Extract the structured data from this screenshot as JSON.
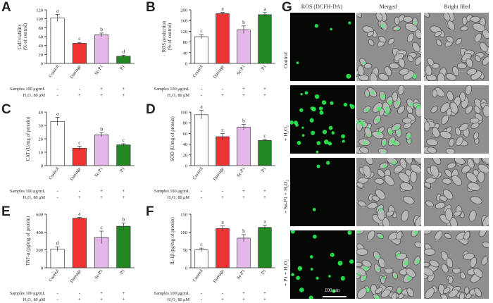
{
  "charts": [
    {
      "letter": "A",
      "chart_data": {
        "type": "bar",
        "categories": [
          "Control",
          "Damage",
          "Se-P1",
          "P1"
        ],
        "values": [
          102,
          45,
          64,
          16
        ],
        "errors": [
          8,
          2,
          4,
          2
        ],
        "letters": [
          "a",
          "c",
          "b",
          "d"
        ],
        "colors": [
          "#ffffff",
          "#ee3333",
          "#e6b8ea",
          "#228822"
        ],
        "ylabel_lines": [
          "Cell viability",
          "(% of control)"
        ],
        "ylim": [
          0,
          120
        ],
        "yticks": [
          0,
          20,
          40,
          60,
          80,
          100,
          120
        ],
        "treatment_rows": [
          {
            "label": "Samples 100 μg/mL",
            "marks": [
              "-",
              "-",
              "+",
              "+"
            ]
          },
          {
            "label": "H₂O₂ 80 μM",
            "marks": [
              "-",
              "+",
              "+",
              "+"
            ]
          }
        ]
      }
    },
    {
      "letter": "B",
      "chart_data": {
        "type": "bar",
        "categories": [
          "Control",
          "Damage",
          "Se-P1",
          "P1"
        ],
        "values": [
          100,
          186,
          126,
          182
        ],
        "errors": [
          8,
          5,
          14,
          8
        ],
        "letters": [
          "c",
          "a",
          "b",
          "a"
        ],
        "colors": [
          "#ffffff",
          "#ee3333",
          "#e6b8ea",
          "#228822"
        ],
        "ylabel_lines": [
          "ROS production",
          "(% of control)"
        ],
        "ylim": [
          0,
          200
        ],
        "yticks": [
          0,
          40,
          80,
          120,
          160,
          200
        ],
        "treatment_rows": [
          {
            "label": "Samples 100 μg/mL",
            "marks": [
              "-",
              "-",
              "+",
              "+"
            ]
          },
          {
            "label": "H₂O₂ 80 μM",
            "marks": [
              "-",
              "+",
              "+",
              "+"
            ]
          }
        ]
      }
    },
    {
      "letter": "C",
      "chart_data": {
        "type": "bar",
        "categories": [
          "Control",
          "Damage",
          "Se-P1",
          "P1"
        ],
        "values": [
          33,
          13,
          23,
          15.5
        ],
        "errors": [
          3,
          1.5,
          1.5,
          0.8
        ],
        "letters": [
          "a",
          "c",
          "b",
          "c"
        ],
        "colors": [
          "#ffffff",
          "#ee3333",
          "#e6b8ea",
          "#228822"
        ],
        "ylabel_lines": [
          "CAT (U/mg of protein)"
        ],
        "ylim": [
          0,
          40
        ],
        "yticks": [
          0,
          10,
          20,
          30,
          40
        ],
        "treatment_rows": [
          {
            "label": "Samples 100 μg/mL",
            "marks": [
              "-",
              "-",
              "+",
              "+"
            ]
          },
          {
            "label": "H₂O₂ 80 μM",
            "marks": [
              "-",
              "+",
              "+",
              "+"
            ]
          }
        ]
      }
    },
    {
      "letter": "D",
      "chart_data": {
        "type": "bar",
        "categories": [
          "Control",
          "Damage",
          "Se-P1",
          "P1"
        ],
        "values": [
          95,
          54,
          72,
          47
        ],
        "errors": [
          8,
          6,
          5,
          2
        ],
        "letters": [
          "a",
          "c",
          "b",
          "c"
        ],
        "colors": [
          "#ffffff",
          "#ee3333",
          "#e6b8ea",
          "#228822"
        ],
        "ylabel_lines": [
          "SOD (U/mg of protein)"
        ],
        "ylim": [
          0,
          100
        ],
        "yticks": [
          0,
          20,
          40,
          60,
          80,
          100
        ],
        "treatment_rows": [
          {
            "label": "Samples 100 μg/mL",
            "marks": [
              "-",
              "-",
              "+",
              "+"
            ]
          },
          {
            "label": "H₂O₂ 80 μM",
            "marks": [
              "-",
              "+",
              "+",
              "+"
            ]
          }
        ]
      }
    },
    {
      "letter": "E",
      "chart_data": {
        "type": "bar",
        "categories": [
          "Control",
          "Damage",
          "Se-P1",
          "P1"
        ],
        "values": [
          210,
          555,
          340,
          465
        ],
        "errors": [
          25,
          10,
          70,
          35
        ],
        "letters": [
          "d",
          "a",
          "c",
          "b"
        ],
        "colors": [
          "#ffffff",
          "#ee3333",
          "#e6b8ea",
          "#228822"
        ],
        "ylabel_lines": [
          "TNF-α (pg/mg of protein)"
        ],
        "ylim": [
          0,
          600
        ],
        "yticks": [
          0,
          200,
          400,
          600
        ],
        "treatment_rows": [
          {
            "label": "Samples 100 μg/mL",
            "marks": [
              "-",
              "-",
              "+",
              "+"
            ]
          },
          {
            "label": "H₂O₂ 80 μM",
            "marks": [
              "-",
              "+",
              "+",
              "+"
            ]
          }
        ]
      }
    },
    {
      "letter": "F",
      "chart_data": {
        "type": "bar",
        "categories": [
          "Control",
          "Damage",
          "Se-P1",
          "P1"
        ],
        "values": [
          50,
          110,
          83,
          113
        ],
        "errors": [
          5,
          7,
          10,
          6
        ],
        "letters": [
          "c",
          "a",
          "b",
          "a"
        ],
        "colors": [
          "#ffffff",
          "#ee3333",
          "#e6b8ea",
          "#228822"
        ],
        "ylabel_lines": [
          "IL-1β (pg/mg of protein)"
        ],
        "ylim": [
          0,
          150
        ],
        "yticks": [
          0,
          50,
          100,
          150
        ],
        "treatment_rows": [
          {
            "label": "Samples 100 μg/mL",
            "marks": [
              "-",
              "-",
              "+",
              "+"
            ]
          },
          {
            "label": "H₂O₂ 80 μM",
            "marks": [
              "-",
              "+",
              "+",
              "+"
            ]
          }
        ]
      }
    }
  ],
  "micrograph": {
    "letter": "G",
    "column_headers": [
      "ROS (DCFH-DA)",
      "Merged",
      "Bright filed"
    ],
    "row_labels": [
      "Control",
      "+ H₂O₂",
      "+ Se-P1 + H₂O₂",
      "+ P1 + H₂O₂"
    ],
    "fluorescence_levels": [
      0.15,
      1.0,
      0.1,
      0.55
    ],
    "scale_bar_label": "100 μm"
  }
}
